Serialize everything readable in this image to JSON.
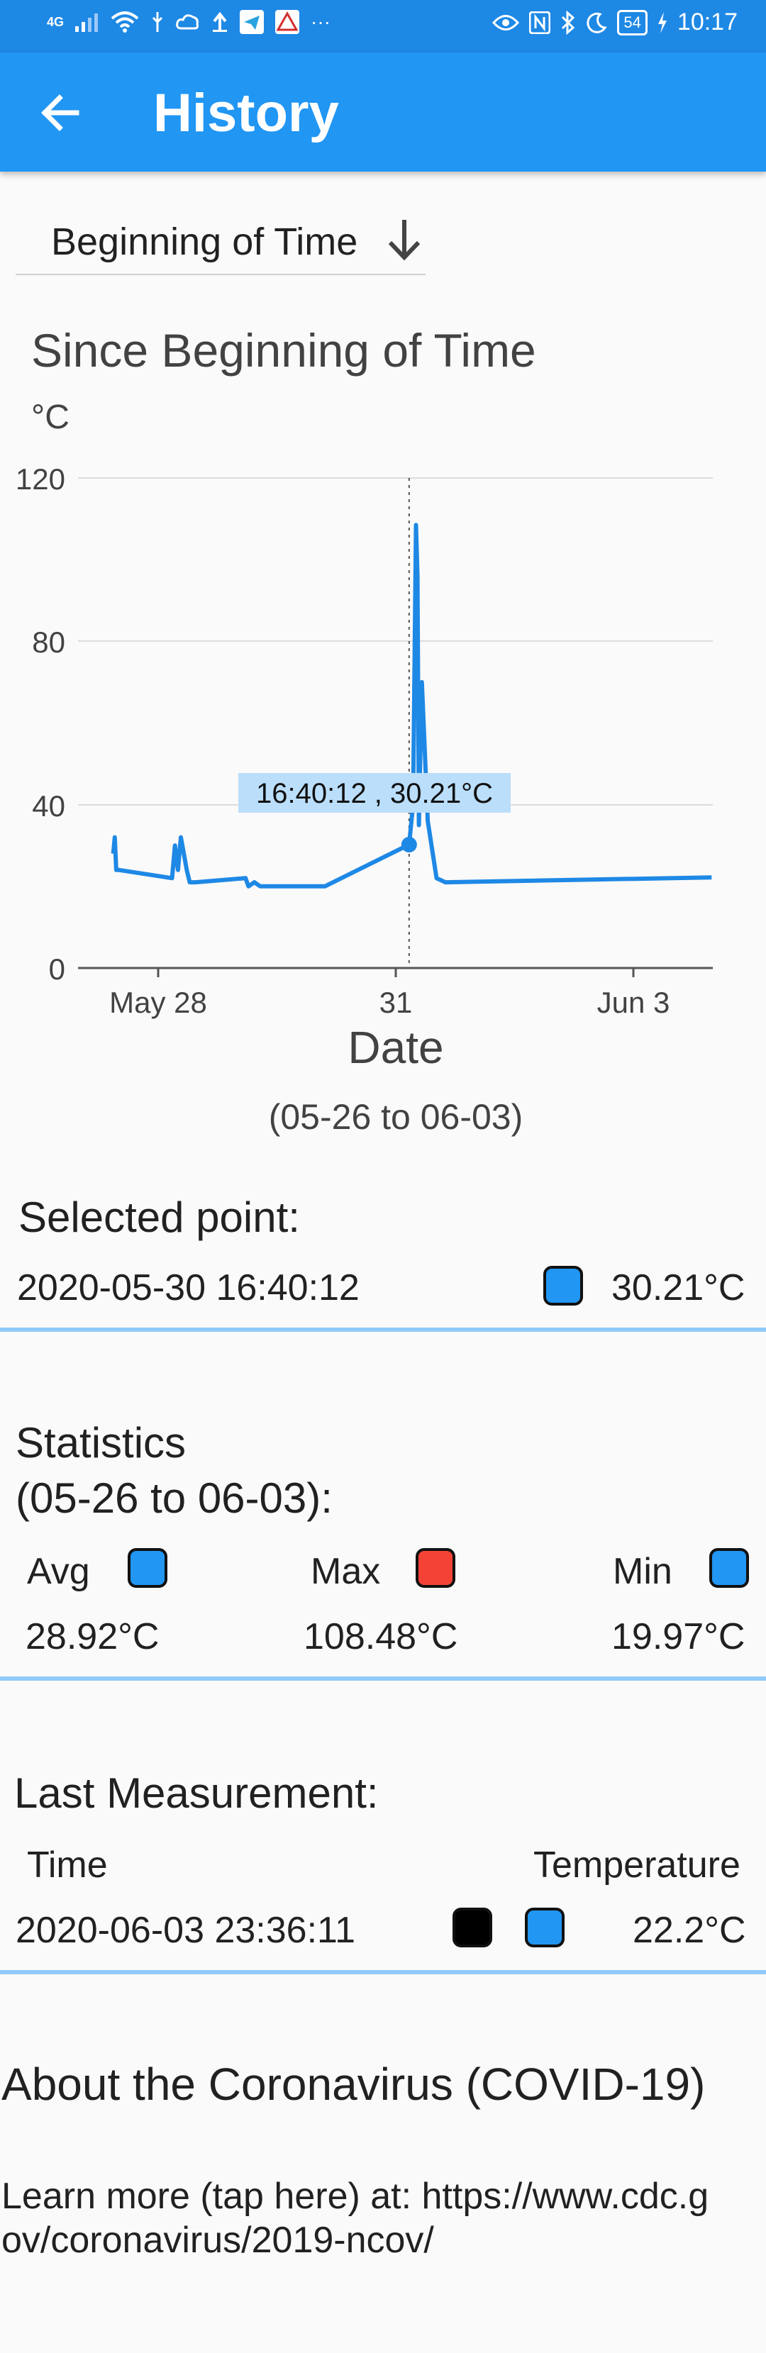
{
  "status_bar": {
    "network": "4G",
    "battery": "54",
    "time": "10:17"
  },
  "app_bar": {
    "title": "History"
  },
  "range_selector": {
    "value": "Beginning of Time"
  },
  "chart_header": "Since Beginning of Time",
  "chart_data": {
    "type": "line",
    "title": "Since Beginning of Time",
    "ylabel": "°C",
    "xlabel": "Date",
    "ylim": [
      0,
      120
    ],
    "yticks": [
      0,
      40,
      80,
      120
    ],
    "xticks": [
      "May 28",
      "31",
      "Jun 3"
    ],
    "grid": true,
    "series": [
      {
        "color": "#1e88e5",
        "x": [
          "2020-05-26 12:00",
          "2020-05-26 12:30",
          "2020-05-26 13:00",
          "2020-05-26 13:30",
          "2020-05-26 14:00",
          "2020-05-27 08:00",
          "2020-05-27 09:00",
          "2020-05-27 10:00",
          "2020-05-27 11:00",
          "2020-05-27 12:00",
          "2020-05-27 13:00",
          "2020-05-27 14:00",
          "2020-05-27 16:00",
          "2020-05-28 09:00",
          "2020-05-28 10:00",
          "2020-05-28 12:00",
          "2020-05-28 14:00",
          "2020-05-29 12:00",
          "2020-05-30 16:40",
          "2020-05-30 18:00",
          "2020-05-30 19:00",
          "2020-05-30 19:30",
          "2020-05-30 20:00",
          "2020-05-30 21:00",
          "2020-05-30 23:00",
          "2020-05-31 02:00",
          "2020-05-31 05:00",
          "2020-05-31 06:00",
          "2020-06-03 23:36"
        ],
        "values": [
          28,
          32,
          24,
          24,
          24,
          22,
          30,
          24,
          32,
          28,
          24,
          21,
          21,
          22,
          20,
          21,
          20,
          20,
          30.21,
          40,
          108.48,
          96,
          35,
          70,
          36,
          22,
          21,
          21,
          22.2
        ]
      }
    ],
    "selected_point": {
      "x": "2020-05-30 16:40",
      "value": 30.21
    }
  },
  "chart_tooltip": "16:40:12 , 30.21°C",
  "axis_labels": {
    "y_unit": "°C",
    "y_ticks": [
      "120",
      "80",
      "40",
      "0"
    ],
    "x_ticks": [
      "May 28",
      "31",
      "Jun 3"
    ],
    "x_title": "Date"
  },
  "date_range": "(05-26 to 06-03)",
  "selected": {
    "title": "Selected point:",
    "datetime": "2020-05-30 16:40:12",
    "value": "30.21°C",
    "swatch_color": "#2196f3"
  },
  "statistics": {
    "title_line1": "Statistics",
    "title_line2": "(05-26 to 06-03):",
    "avg_label": "Avg",
    "avg_value": "28.92°C",
    "avg_color": "#2196f3",
    "max_label": "Max",
    "max_value": "108.48°C",
    "max_color": "#f44336",
    "min_label": "Min",
    "min_value": "19.97°C",
    "min_color": "#2196f3"
  },
  "last_measurement": {
    "title": "Last Measurement:",
    "time_header": "Time",
    "temp_header": "Temperature",
    "time_value": "2020-06-03 23:36:11",
    "temp_value": "22.2°C",
    "swatch1_color": "#000000",
    "swatch2_color": "#2196f3"
  },
  "about": {
    "title": "About the Coronavirus (COVID-19)",
    "learn_more": "Learn more (tap here) at: https://www.cdc.gov/coronavirus/2019-ncov/"
  }
}
